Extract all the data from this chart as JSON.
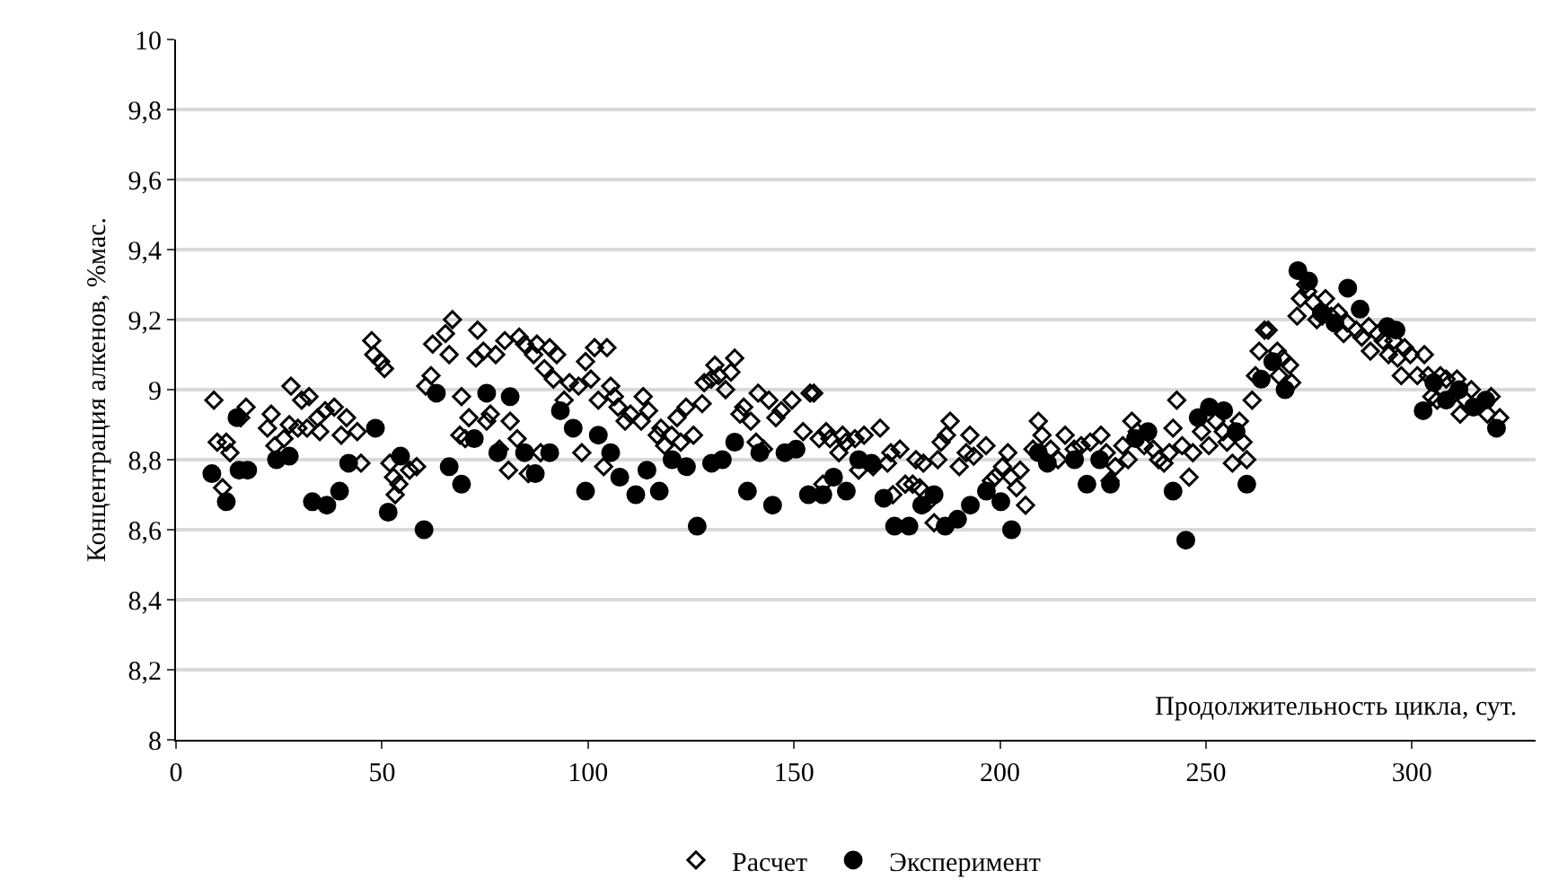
{
  "chart_data": {
    "type": "scatter",
    "xlabel": "Продолжительность цикла, сут.",
    "ylabel": "Концентрация алкенов, %мас.",
    "xlim": [
      0,
      330
    ],
    "xticks": [
      0,
      50,
      100,
      150,
      200,
      250,
      300
    ],
    "ylim": [
      8,
      10
    ],
    "yticks": [
      {
        "value": 8,
        "label": "8"
      },
      {
        "value": 8.2,
        "label": "8,2"
      },
      {
        "value": 8.4,
        "label": "8,4"
      },
      {
        "value": 8.6,
        "label": "8,6"
      },
      {
        "value": 8.8,
        "label": "8,8"
      },
      {
        "value": 9,
        "label": "9"
      },
      {
        "value": 9.2,
        "label": "9,2"
      },
      {
        "value": 9.4,
        "label": "9,4"
      },
      {
        "value": 9.6,
        "label": "9,6"
      },
      {
        "value": 9.8,
        "label": "9,8"
      },
      {
        "value": 10,
        "label": "10"
      }
    ],
    "grid": "y",
    "legend": "bottom",
    "series": [
      {
        "name": "Расчет",
        "color": "#000000",
        "marker": "diamond-open",
        "x": [
          9.2,
          10.0,
          11.3,
          12.2,
          13.1,
          15.7,
          17.0,
          22.2,
          23.1,
          24.0,
          26.2,
          27.5,
          27.9,
          29.6,
          30.5,
          31.8,
          32.3,
          34.4,
          34.9,
          36.2,
          38.4,
          40.1,
          41.4,
          44.0,
          44.9,
          47.5,
          48.0,
          49.7,
          50.6,
          51.9,
          52.8,
          53.2,
          54.1,
          56.7,
          58.4,
          60.6,
          61.9,
          62.3,
          65.4,
          66.3,
          67.1,
          68.9,
          69.3,
          70.2,
          71.1,
          72.8,
          73.2,
          74.6,
          75.4,
          76.3,
          77.6,
          78.5,
          79.8,
          80.7,
          81.1,
          82.8,
          83.3,
          84.6,
          85.5,
          86.8,
          87.6,
          88.5,
          89.4,
          90.7,
          91.6,
          92.4,
          94.2,
          95.5,
          97.7,
          98.5,
          99.4,
          100.7,
          101.6,
          102.5,
          103.8,
          104.6,
          105.5,
          106.4,
          107.3,
          109.0,
          110.3,
          112.9,
          113.4,
          114.7,
          116.8,
          117.7,
          118.6,
          120.3,
          121.6,
          122.5,
          123.8,
          125.6,
          127.7,
          128.2,
          129.9,
          130.8,
          131.7,
          133.4,
          134.7,
          135.6,
          136.9,
          137.8,
          139.5,
          140.8,
          141.3,
          142.6,
          143.9,
          145.6,
          146.9,
          149.5,
          152.2,
          153.9,
          154.8,
          156.1,
          157.0,
          157.8,
          158.7,
          160.9,
          161.8,
          162.6,
          164.8,
          165.7,
          167.0,
          169.2,
          170.9,
          172.7,
          173.5,
          174.0,
          175.7,
          177.0,
          178.8,
          179.6,
          180.5,
          181.4,
          182.7,
          184.0,
          184.9,
          185.7,
          187.0,
          187.9,
          190.1,
          191.8,
          192.7,
          193.6,
          196.6,
          197.9,
          198.8,
          200.6,
          201.9,
          202.7,
          204.0,
          204.9,
          206.2,
          208.0,
          209.3,
          210.2,
          212.3,
          214.1,
          215.8,
          218.0,
          219.7,
          221.9,
          224.5,
          225.8,
          226.7,
          228.0,
          229.8,
          231.1,
          232.0,
          233.3,
          235.0,
          237.2,
          238.5,
          239.8,
          241.1,
          242.0,
          242.9,
          244.2,
          245.9,
          246.8,
          248.9,
          250.7,
          252.4,
          254.2,
          255.1,
          256.4,
          258.1,
          259.0,
          259.9,
          261.2,
          262.0,
          262.9,
          264.2,
          265.1,
          267.3,
          267.7,
          268.6,
          270.3,
          270.8,
          272.1,
          272.9,
          274.2,
          274.7,
          276.0,
          276.9,
          278.2,
          279.0,
          280.4,
          282.1,
          283.4,
          284.3,
          286.5,
          287.8,
          289.5,
          289.9,
          291.7,
          293.0,
          294.3,
          295.6,
          296.5,
          297.4,
          298.2,
          299.6,
          301.3,
          303.0,
          303.9,
          304.8,
          306.1,
          306.9,
          308.3,
          309.6,
          310.9,
          311.7,
          313.0,
          314.4,
          318.3,
          319.2,
          321.3
        ],
        "values": [
          8.97,
          8.85,
          8.72,
          8.85,
          8.82,
          8.92,
          8.95,
          8.89,
          8.93,
          8.84,
          8.86,
          8.9,
          9.01,
          8.89,
          8.97,
          8.89,
          8.98,
          8.92,
          8.88,
          8.94,
          8.95,
          8.87,
          8.92,
          8.88,
          8.79,
          9.14,
          9.1,
          9.08,
          9.06,
          8.79,
          8.75,
          8.7,
          8.73,
          8.77,
          8.78,
          9.01,
          9.04,
          9.13,
          9.16,
          9.1,
          9.2,
          8.87,
          8.98,
          8.86,
          8.92,
          9.09,
          9.17,
          9.11,
          8.91,
          8.93,
          9.1,
          8.83,
          9.14,
          8.77,
          8.91,
          8.86,
          9.15,
          9.13,
          8.76,
          9.1,
          9.13,
          8.82,
          9.06,
          9.12,
          9.03,
          9.1,
          8.97,
          9.02,
          9.01,
          8.82,
          9.08,
          9.03,
          9.12,
          8.97,
          8.78,
          9.12,
          9.01,
          8.98,
          8.95,
          8.91,
          8.93,
          8.91,
          8.98,
          8.94,
          8.87,
          8.89,
          8.84,
          8.87,
          8.92,
          8.85,
          8.95,
          8.87,
          8.96,
          9.02,
          9.03,
          9.07,
          9.04,
          9.0,
          9.05,
          9.09,
          8.93,
          8.95,
          8.91,
          8.85,
          8.99,
          8.83,
          8.97,
          8.92,
          8.94,
          8.97,
          8.88,
          8.99,
          8.99,
          8.86,
          8.73,
          8.88,
          8.86,
          8.82,
          8.87,
          8.85,
          8.86,
          8.77,
          8.87,
          8.78,
          8.89,
          8.79,
          8.82,
          8.7,
          8.83,
          8.73,
          8.73,
          8.8,
          8.72,
          8.79,
          8.68,
          8.62,
          8.8,
          8.85,
          8.87,
          8.91,
          8.78,
          8.82,
          8.87,
          8.81,
          8.84,
          8.74,
          8.75,
          8.78,
          8.82,
          8.75,
          8.72,
          8.77,
          8.67,
          8.83,
          8.91,
          8.87,
          8.83,
          8.8,
          8.87,
          8.83,
          8.84,
          8.85,
          8.87,
          8.82,
          8.74,
          8.78,
          8.84,
          8.8,
          8.91,
          8.88,
          8.84,
          8.83,
          8.8,
          8.79,
          8.82,
          8.89,
          8.97,
          8.84,
          8.75,
          8.82,
          8.88,
          8.84,
          8.91,
          8.88,
          8.85,
          8.79,
          8.91,
          8.85,
          8.8,
          8.97,
          9.04,
          9.11,
          9.17,
          9.17,
          9.11,
          9.04,
          9.09,
          9.07,
          9.02,
          9.21,
          9.26,
          9.3,
          9.28,
          9.25,
          9.2,
          9.21,
          9.26,
          9.21,
          9.22,
          9.16,
          9.19,
          9.17,
          9.15,
          9.18,
          9.11,
          9.16,
          9.14,
          9.1,
          9.14,
          9.09,
          9.04,
          9.12,
          9.1,
          9.04,
          9.1,
          9.04,
          8.98,
          8.97,
          9.04,
          9.03,
          8.98,
          9.03,
          8.93,
          8.97,
          9.0,
          8.93,
          8.98,
          8.92
        ]
      },
      {
        "name": "Эксперимент",
        "color": "#000000",
        "marker": "circle",
        "x": [
          8.7,
          12.2,
          14.8,
          15.3,
          17.4,
          24.4,
          27.5,
          33.1,
          36.6,
          39.7,
          41.9,
          48.4,
          51.5,
          54.5,
          60.2,
          63.2,
          66.3,
          69.3,
          72.4,
          75.4,
          78.1,
          81.1,
          84.6,
          87.2,
          90.7,
          93.3,
          96.4,
          99.4,
          102.5,
          105.5,
          107.7,
          111.6,
          114.3,
          117.3,
          120.4,
          123.9,
          126.5,
          130.0,
          132.6,
          135.6,
          138.7,
          141.7,
          144.8,
          147.8,
          150.5,
          153.5,
          157.0,
          159.6,
          162.7,
          165.7,
          168.8,
          171.8,
          174.4,
          177.9,
          181.0,
          184.0,
          186.7,
          189.7,
          192.8,
          196.7,
          200.2,
          202.8,
          209.3,
          211.5,
          218.1,
          221.1,
          224.2,
          226.8,
          232.9,
          235.9,
          242.0,
          245.1,
          248.1,
          250.8,
          254.3,
          257.3,
          259.9,
          263.4,
          266.2,
          269.2,
          272.3,
          274.9,
          278.0,
          281.3,
          284.4,
          287.4,
          294.0,
          296.1,
          302.7,
          305.3,
          308.3,
          311.4,
          314.9,
          317.9,
          320.5
        ],
        "values": [
          8.76,
          8.68,
          8.92,
          8.77,
          8.77,
          8.8,
          8.81,
          8.68,
          8.67,
          8.71,
          8.79,
          8.89,
          8.65,
          8.81,
          8.6,
          8.99,
          8.78,
          8.73,
          8.86,
          8.99,
          8.82,
          8.98,
          8.82,
          8.76,
          8.82,
          8.94,
          8.89,
          8.71,
          8.87,
          8.82,
          8.75,
          8.7,
          8.77,
          8.71,
          8.8,
          8.78,
          8.61,
          8.79,
          8.8,
          8.85,
          8.71,
          8.82,
          8.67,
          8.82,
          8.83,
          8.7,
          8.7,
          8.75,
          8.71,
          8.8,
          8.79,
          8.69,
          8.61,
          8.61,
          8.67,
          8.7,
          8.61,
          8.63,
          8.67,
          8.71,
          8.68,
          8.6,
          8.82,
          8.79,
          8.8,
          8.73,
          8.8,
          8.73,
          8.86,
          8.88,
          8.71,
          8.57,
          8.92,
          8.95,
          8.94,
          8.88,
          8.73,
          9.03,
          9.08,
          9.0,
          9.34,
          9.31,
          9.22,
          9.19,
          9.29,
          9.23,
          9.18,
          9.17,
          8.94,
          9.02,
          8.97,
          9.0,
          8.95,
          8.97,
          8.89
        ]
      }
    ]
  }
}
